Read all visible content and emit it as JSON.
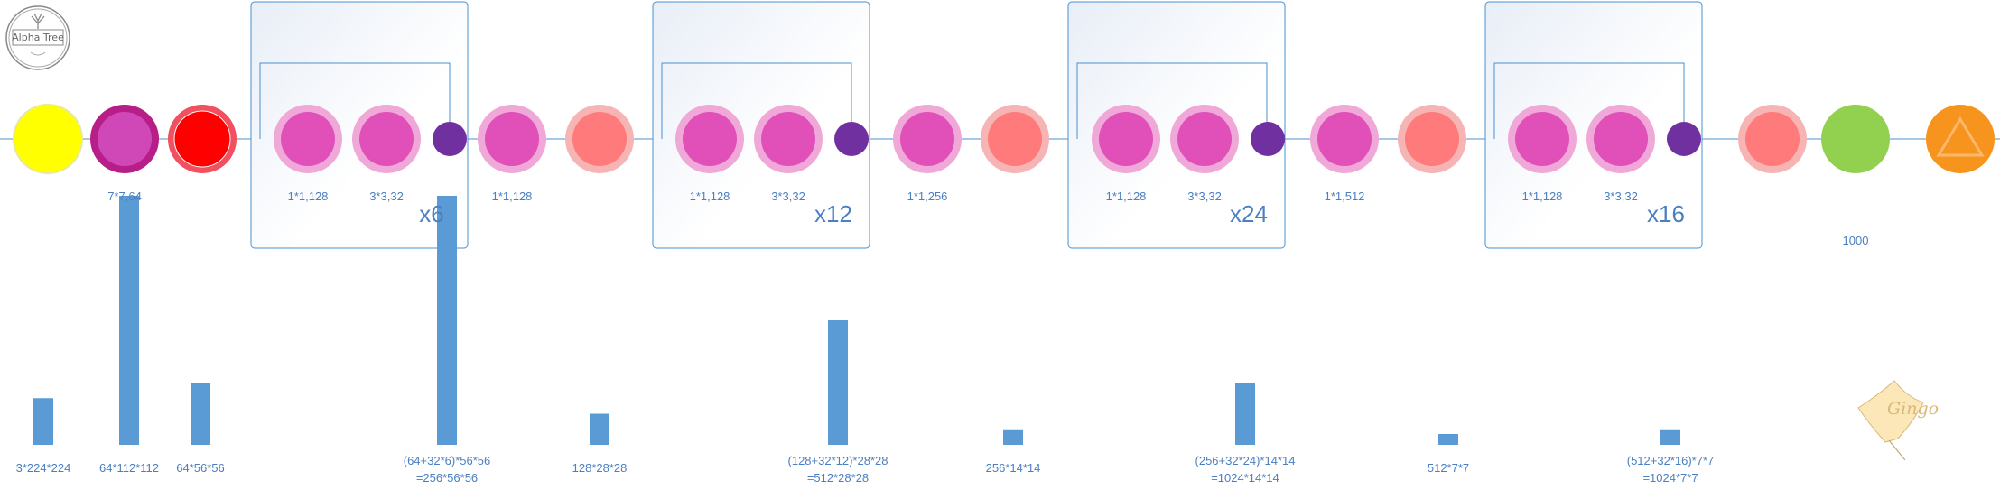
{
  "logo": {
    "text": "Alpha Tree",
    "icon": "tree-icon"
  },
  "watermark": {
    "text": "Gingo",
    "icon": "ginkgo-leaf-icon"
  },
  "colors": {
    "input": "#ffff00",
    "stem": "#d048b8",
    "stem_ring": "#b81e88",
    "pool": "#ff0000",
    "pool_ring": "#f05060",
    "conv": "#e050b8",
    "conv_ring": "#f0a8d8",
    "concat": "#7030a0",
    "salmon": "#ff7b7b",
    "salmon_ring": "#f7b4b4",
    "fc": "#92d050",
    "softmax": "#f7941d",
    "line": "#4a90d0",
    "bar": "#5b9bd5"
  },
  "nodes": [
    {
      "id": "input",
      "type": "input"
    },
    {
      "id": "conv7",
      "type": "stem",
      "label": "7*7,64"
    },
    {
      "id": "pool1",
      "type": "pool"
    },
    {
      "id": "b1c1",
      "type": "conv",
      "label": "1*1,128"
    },
    {
      "id": "b1c3",
      "type": "conv",
      "label": "3*3,32"
    },
    {
      "id": "b1cat",
      "type": "concat"
    },
    {
      "id": "t1c",
      "type": "conv",
      "label": "1*1,128"
    },
    {
      "id": "t1p",
      "type": "salmon"
    },
    {
      "id": "b2c1",
      "type": "conv",
      "label": "1*1,128"
    },
    {
      "id": "b2c3",
      "type": "conv",
      "label": "3*3,32"
    },
    {
      "id": "b2cat",
      "type": "concat"
    },
    {
      "id": "t2c",
      "type": "conv",
      "label": "1*1,256"
    },
    {
      "id": "t2p",
      "type": "salmon"
    },
    {
      "id": "b3c1",
      "type": "conv",
      "label": "1*1,128"
    },
    {
      "id": "b3c3",
      "type": "conv",
      "label": "3*3,32"
    },
    {
      "id": "b3cat",
      "type": "concat"
    },
    {
      "id": "t3c",
      "type": "conv",
      "label": "1*1,512"
    },
    {
      "id": "t3p",
      "type": "salmon"
    },
    {
      "id": "b4c1",
      "type": "conv",
      "label": "1*1,128"
    },
    {
      "id": "b4c3",
      "type": "conv",
      "label": "3*3,32"
    },
    {
      "id": "b4cat",
      "type": "concat"
    },
    {
      "id": "gap",
      "type": "salmon"
    },
    {
      "id": "fc",
      "type": "fc",
      "label": "1000"
    },
    {
      "id": "softmax",
      "type": "softmax"
    }
  ],
  "blocks": [
    {
      "multiplier": "x6"
    },
    {
      "multiplier": "x12"
    },
    {
      "multiplier": "x24"
    },
    {
      "multiplier": "x16"
    }
  ],
  "feature_maps": [
    {
      "lines": [
        "3*224*224"
      ],
      "value": 150528
    },
    {
      "lines": [
        "64*112*112"
      ],
      "value": 802816
    },
    {
      "lines": [
        "64*56*56"
      ],
      "value": 200704
    },
    {
      "lines": [
        "(64+32*6)*56*56",
        "=256*56*56"
      ],
      "value": 802816
    },
    {
      "lines": [
        "128*28*28"
      ],
      "value": 100352
    },
    {
      "lines": [
        "(128+32*12)*28*28",
        "=512*28*28"
      ],
      "value": 401408
    },
    {
      "lines": [
        "256*14*14"
      ],
      "value": 50176
    },
    {
      "lines": [
        "(256+32*24)*14*14",
        "=1024*14*14"
      ],
      "value": 200704
    },
    {
      "lines": [
        "512*7*7"
      ],
      "value": 25088
    },
    {
      "lines": [
        "(512+32*16)*7*7",
        "=1024*7*7"
      ],
      "value": 50176
    }
  ]
}
